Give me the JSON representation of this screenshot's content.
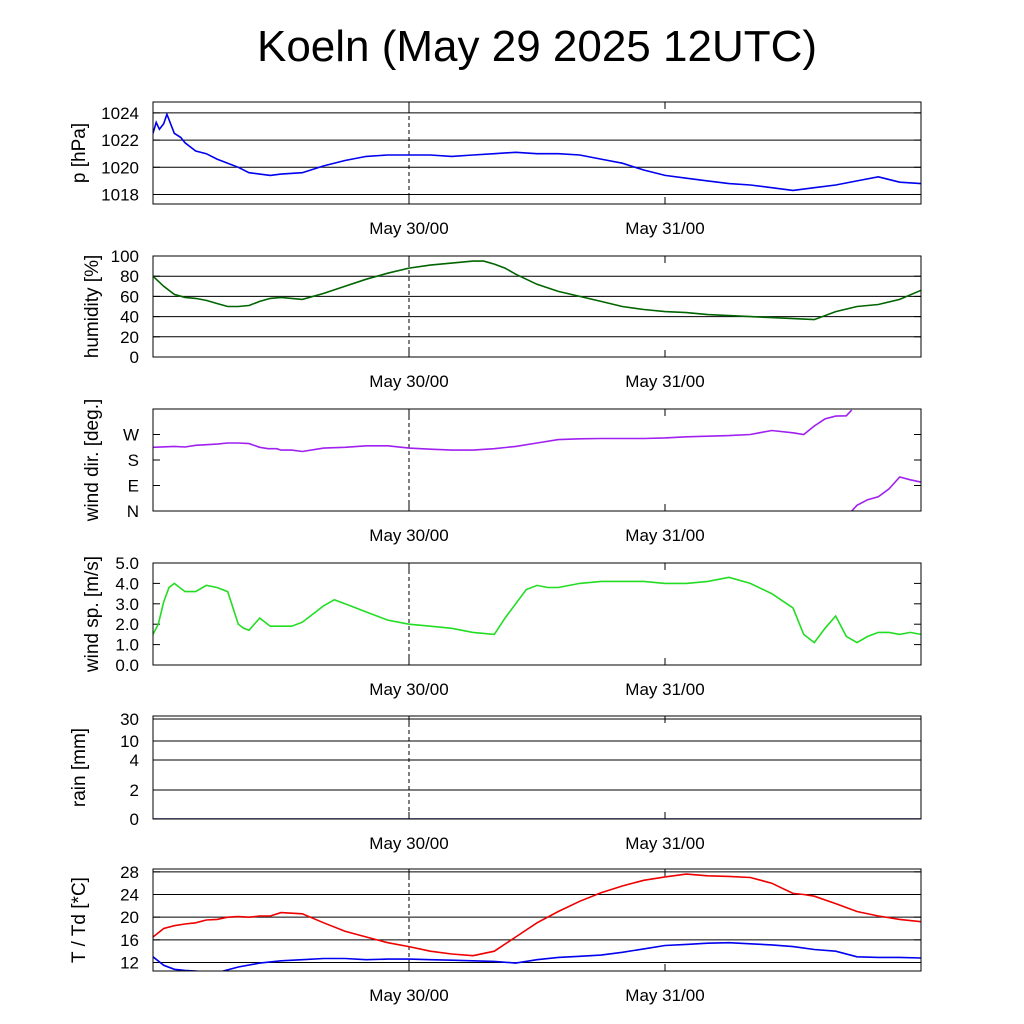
{
  "title": "Koeln (May 29 2025 12UTC)",
  "chart_data": [
    {
      "type": "line",
      "ylabel": "p [hPa]",
      "ylim": [
        1017.3,
        1024.8
      ],
      "yticks": [
        1018,
        1020,
        1022,
        1024
      ],
      "xlabels": [
        "May 30/00",
        "May 31/00"
      ],
      "grid": true,
      "x_unit": "hours from May 29 12UTC",
      "series": [
        {
          "color": "#0000ee",
          "x": [
            0,
            0.3,
            0.6,
            1,
            1.3,
            2,
            2.6,
            3,
            3.5,
            4,
            5,
            6,
            7,
            8,
            9,
            10,
            11,
            12,
            14,
            16,
            18,
            20,
            22,
            24,
            26,
            28,
            30,
            32,
            34,
            36,
            38,
            40,
            42,
            44,
            46,
            48,
            50,
            52,
            54,
            56,
            58,
            60,
            62,
            64,
            66,
            68,
            70,
            72
          ],
          "y": [
            1022.5,
            1023.3,
            1022.8,
            1023.2,
            1023.9,
            1022.5,
            1022.2,
            1021.8,
            1021.5,
            1021.2,
            1021.0,
            1020.6,
            1020.3,
            1020.0,
            1019.6,
            1019.5,
            1019.4,
            1019.5,
            1019.6,
            1020.1,
            1020.5,
            1020.8,
            1020.9,
            1020.9,
            1020.9,
            1020.8,
            1020.9,
            1021.0,
            1021.1,
            1021.0,
            1021.0,
            1020.9,
            1020.6,
            1020.3,
            1019.8,
            1019.4,
            1019.2,
            1019.0,
            1018.8,
            1018.7,
            1018.5,
            1018.3,
            1018.5,
            1018.7,
            1019.0,
            1019.3,
            1018.9,
            1018.8
          ]
        }
      ]
    },
    {
      "type": "line",
      "ylabel": "humidity [%]",
      "ylim": [
        0,
        100
      ],
      "yticks": [
        0,
        20,
        40,
        60,
        80,
        100
      ],
      "xlabels": [
        "May 30/00",
        "May 31/00"
      ],
      "grid": true,
      "series": [
        {
          "color": "#006400",
          "x": [
            0,
            1,
            2,
            3,
            4,
            5,
            6,
            7,
            8,
            9,
            10,
            11,
            12,
            14,
            16,
            18,
            20,
            22,
            24,
            26,
            28,
            30,
            31,
            32,
            33,
            34,
            36,
            38,
            40,
            42,
            44,
            46,
            48,
            50,
            52,
            54,
            56,
            58,
            60,
            62,
            64,
            66,
            68,
            70,
            72
          ],
          "y": [
            80,
            70,
            62,
            59,
            58,
            56,
            53,
            50,
            50,
            51,
            55,
            58,
            59,
            57,
            63,
            70,
            77,
            83,
            88,
            91,
            93,
            95,
            95,
            92,
            88,
            82,
            72,
            65,
            60,
            55,
            50,
            47,
            45,
            44,
            42,
            41,
            40,
            39,
            38,
            37,
            45,
            50,
            52,
            57,
            66
          ]
        }
      ]
    },
    {
      "type": "line",
      "ylabel": "wind dir. [deg.]",
      "ylim": [
        0,
        360
      ],
      "ytick_values": [
        0,
        90,
        180,
        270
      ],
      "ytick_labels": [
        "N",
        "E",
        "S",
        "W"
      ],
      "xlabels": [
        "May 30/00",
        "May 31/00"
      ],
      "grid": false,
      "series": [
        {
          "color": "#a020f0",
          "x": [
            0,
            2,
            3,
            4,
            6,
            7,
            8,
            9,
            10,
            10.8,
            11.6,
            12,
            13,
            14,
            16,
            18,
            20,
            22,
            24,
            26,
            28,
            30,
            32,
            34,
            36,
            38,
            40,
            42,
            44,
            46,
            48,
            50,
            52,
            54,
            56,
            58,
            60,
            61,
            62,
            63,
            64,
            65,
            65.5
          ],
          "y": [
            225,
            228,
            226,
            232,
            236,
            240,
            240,
            238,
            225,
            220,
            220,
            215,
            215,
            210,
            222,
            225,
            230,
            230,
            222,
            218,
            215,
            215,
            220,
            228,
            240,
            252,
            255,
            256,
            256,
            256,
            258,
            262,
            264,
            266,
            270,
            284,
            276,
            270,
            300,
            325,
            335,
            336,
            356
          ]
        },
        {
          "color": "#a020f0",
          "x": [
            65.5,
            66,
            67,
            68,
            69,
            70,
            71,
            72
          ],
          "y": [
            0,
            20,
            40,
            50,
            78,
            120,
            110,
            102
          ]
        }
      ]
    },
    {
      "type": "line",
      "ylabel": "wind sp. [m/s]",
      "ylim": [
        0,
        5.0
      ],
      "yticks": [
        0.0,
        1.0,
        2.0,
        3.0,
        4.0,
        5.0
      ],
      "xlabels": [
        "May 30/00",
        "May 31/00"
      ],
      "grid": false,
      "series": [
        {
          "color": "#22dd22",
          "x": [
            0,
            0.5,
            1,
            1.5,
            2,
            3,
            4,
            5,
            6,
            7,
            8,
            8.5,
            9,
            10,
            11,
            12,
            13,
            14,
            15,
            16,
            17,
            18,
            20,
            22,
            24,
            26,
            28,
            30,
            32,
            33,
            34,
            35,
            36,
            37,
            38,
            40,
            42,
            44,
            46,
            48,
            50,
            52,
            54,
            56,
            58,
            60,
            61,
            62,
            63,
            64,
            65,
            66,
            67,
            68,
            69,
            70,
            71,
            72
          ],
          "y": [
            1.5,
            2.0,
            3.1,
            3.8,
            4.0,
            3.6,
            3.6,
            3.9,
            3.8,
            3.6,
            2.0,
            1.8,
            1.7,
            2.3,
            1.9,
            1.9,
            1.9,
            2.1,
            2.5,
            2.9,
            3.2,
            3.0,
            2.6,
            2.2,
            2.0,
            1.9,
            1.8,
            1.6,
            1.5,
            2.3,
            3.0,
            3.7,
            3.9,
            3.8,
            3.8,
            4.0,
            4.1,
            4.1,
            4.1,
            4.0,
            4.0,
            4.1,
            4.3,
            4.0,
            3.5,
            2.8,
            1.5,
            1.1,
            1.8,
            2.4,
            1.4,
            1.1,
            1.4,
            1.6,
            1.6,
            1.5,
            1.6,
            1.5
          ]
        }
      ]
    },
    {
      "type": "line",
      "ylabel": "rain [mm]",
      "ytick_values": [
        0,
        2,
        4,
        10,
        30
      ],
      "ytick_labels": [
        "0",
        "2",
        "4",
        "10",
        "30"
      ],
      "xlabels": [
        "May 30/00",
        "May 31/00"
      ],
      "grid": true,
      "series": [
        {
          "color": "#000080",
          "x": [
            0,
            72
          ],
          "y": [
            0,
            0
          ]
        }
      ]
    },
    {
      "type": "line",
      "ylabel": "T / Td [*C]",
      "ylim": [
        10.5,
        28.5
      ],
      "yticks": [
        12,
        16,
        20,
        24,
        28
      ],
      "xlabels": [
        "May 30/00",
        "May 31/00"
      ],
      "grid": true,
      "series": [
        {
          "color": "#ee0000",
          "x": [
            0,
            1,
            2,
            3,
            4,
            5,
            6,
            7,
            8,
            9,
            10,
            11,
            12,
            14,
            16,
            18,
            20,
            22,
            24,
            26,
            28,
            30,
            32,
            34,
            36,
            38,
            40,
            42,
            44,
            46,
            48,
            50,
            52,
            54,
            56,
            58,
            60,
            61,
            62,
            64,
            66,
            68,
            70,
            72
          ],
          "y": [
            16.5,
            18.0,
            18.5,
            18.8,
            19.0,
            19.5,
            19.6,
            20.0,
            20.1,
            20.0,
            20.2,
            20.2,
            20.8,
            20.6,
            19.0,
            17.5,
            16.5,
            15.5,
            14.8,
            14.0,
            13.5,
            13.2,
            14.0,
            16.5,
            19.0,
            21.0,
            22.8,
            24.3,
            25.5,
            26.5,
            27.1,
            27.6,
            27.3,
            27.2,
            27.0,
            26.0,
            24.2,
            24.0,
            23.7,
            22.4,
            21.0,
            20.2,
            19.6,
            19.2
          ]
        },
        {
          "color": "#0000ee",
          "x": [
            0,
            1,
            2,
            3,
            4,
            5,
            5.5,
            6,
            8,
            10,
            12,
            14,
            16,
            18,
            20,
            22,
            24,
            26,
            28,
            30,
            32,
            34,
            36,
            38,
            40,
            42,
            44,
            46,
            48,
            50,
            52,
            54,
            56,
            58,
            60,
            62,
            64,
            66,
            68,
            70,
            72
          ],
          "y": [
            13.0,
            11.5,
            10.8,
            10.6,
            10.5,
            10.3,
            10.1,
            10.2,
            11.2,
            11.9,
            12.3,
            12.5,
            12.7,
            12.7,
            12.5,
            12.6,
            12.6,
            12.5,
            12.4,
            12.3,
            12.2,
            11.9,
            12.5,
            12.9,
            13.1,
            13.3,
            13.8,
            14.4,
            15.0,
            15.2,
            15.4,
            15.5,
            15.3,
            15.1,
            14.8,
            14.3,
            14.0,
            13.0,
            12.9,
            12.9,
            12.8
          ]
        }
      ]
    }
  ]
}
